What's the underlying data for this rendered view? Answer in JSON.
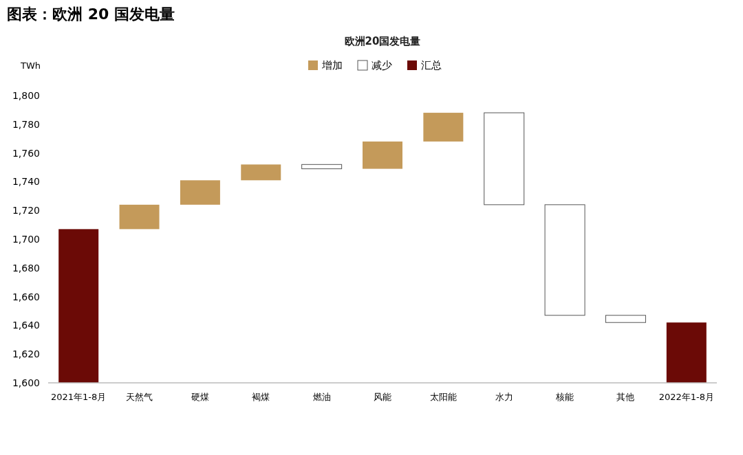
{
  "chart_data": {
    "type": "bar",
    "title": "图表：欧洲 20 国发电量",
    "subtitle": "欧洲20国发电量",
    "ylabel": "TWh",
    "categories": [
      "2021年1-8月",
      "天然气",
      "硬煤",
      "褐煤",
      "燃油",
      "风能",
      "太阳能",
      "水力",
      "核能",
      "其他",
      "2022年1-8月"
    ],
    "series": [
      {
        "name": "增加",
        "color": "#c49a5a",
        "values": [
          null,
          17,
          17,
          11,
          null,
          19,
          20,
          null,
          null,
          null,
          null
        ],
        "base": [
          null,
          1707,
          1724,
          1741,
          null,
          1749,
          1768,
          null,
          null,
          null,
          null
        ]
      },
      {
        "name": "减少",
        "color": "#ffffff",
        "values": [
          null,
          null,
          null,
          null,
          -3,
          null,
          null,
          -64,
          -77,
          -5,
          null
        ],
        "base": [
          null,
          null,
          null,
          null,
          1752,
          null,
          null,
          1788,
          1724,
          1647,
          null
        ]
      },
      {
        "name": "汇总",
        "color": "#6b0a06",
        "values": [
          1707,
          null,
          null,
          null,
          null,
          null,
          null,
          null,
          null,
          null,
          1642
        ]
      }
    ],
    "ylim": [
      1600,
      1800
    ],
    "yticks": [
      {
        "value": 1600,
        "label": "1,600"
      },
      {
        "value": 1620,
        "label": "1,620"
      },
      {
        "value": 1640,
        "label": "1,640"
      },
      {
        "value": 1660,
        "label": "1,660"
      },
      {
        "value": 1680,
        "label": "1,680"
      },
      {
        "value": 1700,
        "label": "1,700"
      },
      {
        "value": 1720,
        "label": "1,720"
      },
      {
        "value": 1740,
        "label": "1,740"
      },
      {
        "value": 1760,
        "label": "1,760"
      },
      {
        "value": 1780,
        "label": "1,780"
      },
      {
        "value": 1800,
        "label": "1,800"
      }
    ],
    "legend": "top"
  }
}
